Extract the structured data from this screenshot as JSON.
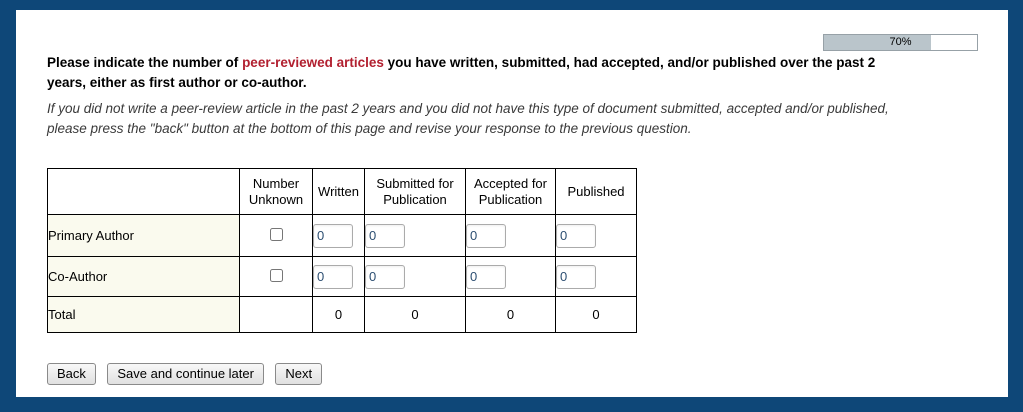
{
  "page": {
    "frame_color": "#0e4778",
    "content_background": "#ffffff",
    "row_label_background": "#fafaee"
  },
  "progress": {
    "label": "70%",
    "percent": 70,
    "fill_color": "#bac5cb",
    "fill_style": "width:70%"
  },
  "question": {
    "line1": {
      "before": "Please indicate the number of ",
      "highlight": "peer-reviewed articles",
      "after": " you have written, submitted, had accepted, and/or published over the past 2"
    },
    "line2": "years, either as first author or co-author.",
    "highlight_color": "#b22030"
  },
  "instruction": {
    "lines": [
      "If you did not write a peer-review article in the past 2 years and you did not have this type of document submitted, accepted and/or published,",
      "please press the \"back\" button at the bottom of this page and revise your response to the previous question."
    ]
  },
  "table": {
    "columns": [
      "",
      "Number Unknown",
      "Written",
      "Submitted for Publication",
      "Accepted for Publication",
      "Published"
    ],
    "rows": [
      {
        "label": "Primary Author",
        "unknown_checked": false,
        "values": [
          "0",
          "0",
          "0",
          "0"
        ]
      },
      {
        "label": "Co-Author",
        "unknown_checked": false,
        "values": [
          "0",
          "0",
          "0",
          "0"
        ]
      }
    ],
    "total": {
      "label": "Total",
      "values": [
        "0",
        "0",
        "0",
        "0"
      ]
    }
  },
  "buttons": {
    "back": "Back",
    "save": "Save and continue later",
    "next": "Next"
  }
}
